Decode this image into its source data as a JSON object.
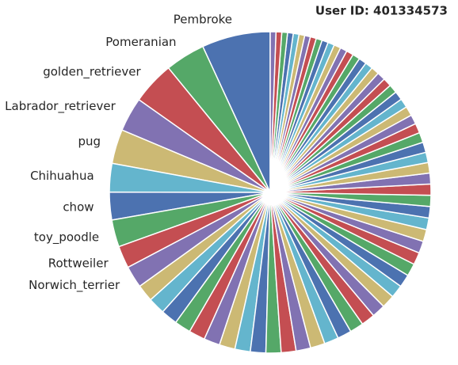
{
  "chart_data": {
    "type": "pie",
    "title": "User ID: 401334573",
    "categories": [
      "Pembroke",
      "Pomeranian",
      "golden_retriever",
      "Labrador_retriever",
      "pug",
      "Chihuahua",
      "chow",
      "toy_poodle",
      "Rottweiler",
      "Norwich_terrier",
      null,
      null,
      null,
      null,
      null,
      null,
      null,
      null,
      null,
      null,
      null,
      null,
      null,
      null,
      null,
      null,
      null,
      null,
      null,
      null,
      null,
      null,
      null,
      null,
      null,
      null,
      null,
      null,
      null,
      null,
      null,
      null,
      null,
      null,
      null,
      null,
      null,
      null,
      null,
      null,
      null,
      null,
      null,
      null,
      null,
      null,
      null,
      null,
      null,
      null,
      null,
      null,
      null,
      null,
      null,
      null,
      null,
      null,
      null,
      null
    ],
    "values": [
      24,
      14,
      15,
      12,
      12,
      10,
      9.7,
      9.5,
      7.8,
      7.7,
      6.0,
      5.9,
      5.8,
      5.7,
      5.7,
      5.6,
      5.5,
      5.4,
      5.4,
      5.3,
      5.2,
      5.1,
      5.1,
      5.0,
      4.9,
      4.8,
      4.8,
      4.7,
      4.6,
      4.5,
      4.5,
      4.4,
      4.3,
      4.2,
      4.2,
      4.1,
      4.0,
      3.9,
      3.9,
      3.8,
      3.7,
      3.6,
      3.6,
      3.5,
      3.4,
      3.3,
      3.3,
      3.2,
      3.1,
      3.0,
      3.0,
      2.9,
      2.8,
      2.7,
      2.7,
      2.6,
      2.5,
      2.4,
      2.4,
      2.3,
      2.2,
      2.1,
      2.1,
      2.0,
      2.0,
      2.0,
      2.0,
      2.0,
      2.0,
      2.0
    ],
    "colors": [
      "#4c72b0",
      "#55a868",
      "#c44e52",
      "#8172b2",
      "#ccb974",
      "#64b5cd"
    ],
    "startangle": 90,
    "counterclock": true
  }
}
